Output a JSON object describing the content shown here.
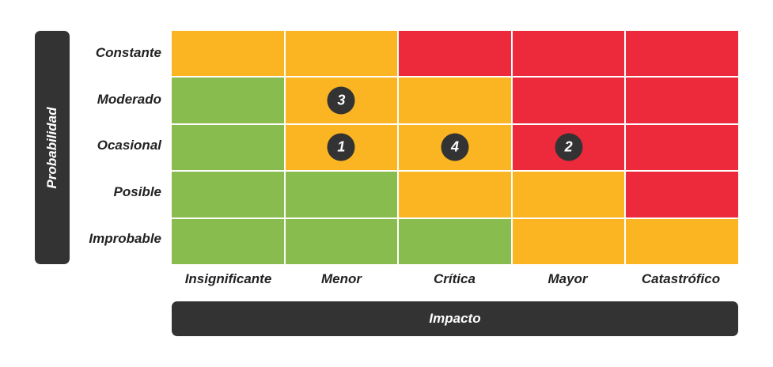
{
  "axis": {
    "y_label": "Probabilidad",
    "x_label": "Impacto"
  },
  "rows": [
    "Constante",
    "Moderado",
    "Ocasional",
    "Posible",
    "Improbable"
  ],
  "columns": [
    "Insignificante",
    "Menor",
    "Crítica",
    "Mayor",
    "Catastrófico"
  ],
  "colors": {
    "green": "#89bc4e",
    "orange": "#fbb522",
    "red": "#ec2a3b",
    "dark": "#333333"
  },
  "matrix": [
    [
      "orange",
      "orange",
      "red",
      "red",
      "red"
    ],
    [
      "green",
      "orange",
      "orange",
      "red",
      "red"
    ],
    [
      "green",
      "orange",
      "orange",
      "red",
      "red"
    ],
    [
      "green",
      "green",
      "orange",
      "orange",
      "red"
    ],
    [
      "green",
      "green",
      "green",
      "orange",
      "orange"
    ]
  ],
  "markers": [
    {
      "label": "3",
      "row": 1,
      "col": 1
    },
    {
      "label": "1",
      "row": 2,
      "col": 1
    },
    {
      "label": "4",
      "row": 2,
      "col": 2
    },
    {
      "label": "2",
      "row": 2,
      "col": 3
    }
  ]
}
